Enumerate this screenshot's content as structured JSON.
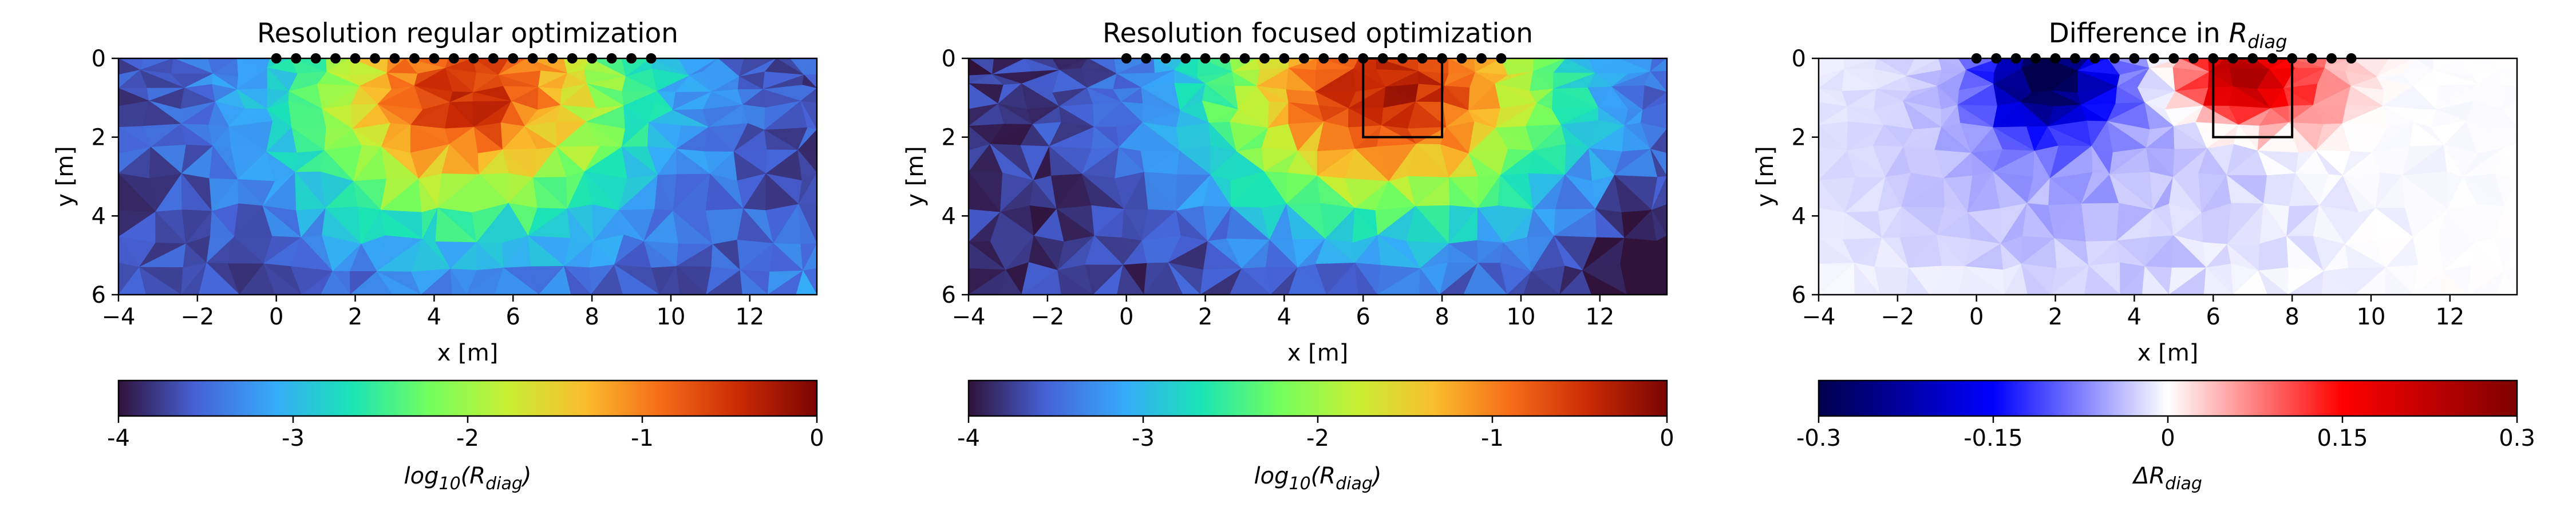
{
  "colors": {
    "turbo": [
      "#30123b",
      "#4662d7",
      "#36aaf9",
      "#1ae4b6",
      "#72fe5e",
      "#c7ef34",
      "#fabd2c",
      "#f66b19",
      "#ca2a04",
      "#7a0403"
    ],
    "seismic": [
      "#00004c",
      "#0000ff",
      "#ffffff",
      "#ff0000",
      "#7f0000"
    ],
    "axes": "#000000"
  },
  "chart_data": [
    {
      "type": "heatmap",
      "mesh": "triangular",
      "title": "Resolution regular optimization",
      "xlabel": "x [m]",
      "ylabel": "y [m]",
      "xlim": [
        -4,
        13.7
      ],
      "ylim": [
        6,
        0
      ],
      "xticks": [
        -4,
        -2,
        0,
        2,
        4,
        6,
        8,
        10,
        12
      ],
      "xtick_labels": [
        "−4",
        "−2",
        "0",
        "2",
        "4",
        "6",
        "8",
        "10",
        "12"
      ],
      "yticks": [
        0,
        2,
        4,
        6
      ],
      "ytick_labels": [
        "0",
        "2",
        "4",
        "6"
      ],
      "colormap": "turbo",
      "vmin": -4,
      "vmax": 0,
      "colorbar_ticks": [
        -4,
        -3,
        -2,
        -1,
        0
      ],
      "colorbar_tick_labels": [
        "-4",
        "-3",
        "-2",
        "-1",
        "0"
      ],
      "colorbar_label": "log10(Rdiag)",
      "colorbar_label_base": "log",
      "colorbar_label_sub": "10",
      "colorbar_label_arg": "(R",
      "colorbar_label_arg_sub": "diag",
      "colorbar_label_close": ")",
      "electrodes_x": [
        0,
        0.5,
        1,
        1.5,
        2,
        2.5,
        3,
        3.5,
        4,
        4.5,
        5,
        5.5,
        6,
        6.5,
        7,
        7.5,
        8,
        8.5,
        9,
        9.5
      ],
      "field": {
        "center_x": 4.85,
        "center_y": 0.9,
        "peak": -0.5,
        "radius_x": 5.4,
        "radius_y": 4.2,
        "floor": -3.7,
        "noise": 0.22,
        "corner_x": 13.7,
        "corner_y": 6,
        "corner_value": -3.2,
        "corner_radius": 3
      },
      "focus_box": null
    },
    {
      "type": "heatmap",
      "mesh": "triangular",
      "title": "Resolution focused optimization",
      "xlabel": "x [m]",
      "ylabel": "y [m]",
      "xlim": [
        -4,
        13.7
      ],
      "ylim": [
        6,
        0
      ],
      "xticks": [
        -4,
        -2,
        0,
        2,
        4,
        6,
        8,
        10,
        12
      ],
      "xtick_labels": [
        "−4",
        "−2",
        "0",
        "2",
        "4",
        "6",
        "8",
        "10",
        "12"
      ],
      "yticks": [
        0,
        2,
        4,
        6
      ],
      "ytick_labels": [
        "0",
        "2",
        "4",
        "6"
      ],
      "colormap": "turbo",
      "vmin": -4,
      "vmax": 0,
      "colorbar_ticks": [
        -4,
        -3,
        -2,
        -1,
        0
      ],
      "colorbar_tick_labels": [
        "-4",
        "-3",
        "-2",
        "-1",
        "0"
      ],
      "colorbar_label": "log10(Rdiag)",
      "colorbar_label_base": "log",
      "colorbar_label_sub": "10",
      "colorbar_label_arg": "(R",
      "colorbar_label_arg_sub": "diag",
      "colorbar_label_close": ")",
      "electrodes_x": [
        0,
        0.5,
        1,
        1.5,
        2,
        2.5,
        3,
        3.5,
        4,
        4.5,
        5,
        5.5,
        6,
        6.5,
        7,
        7.5,
        8,
        8.5,
        9,
        9.5
      ],
      "field": {
        "center_x": 6.6,
        "center_y": 0.9,
        "peak": -0.3,
        "radius_x": 5.6,
        "radius_y": 4.0,
        "floor": -3.8,
        "noise": 0.22,
        "corner_x": 13.7,
        "corner_y": 6,
        "corner_value": -4.3,
        "corner_radius": 3.2
      },
      "focus_box": {
        "x": [
          6,
          8
        ],
        "y": [
          0,
          2
        ]
      }
    },
    {
      "type": "heatmap",
      "mesh": "triangular",
      "title": "Difference in Rdiag",
      "title_prefix": "Difference in ",
      "title_math": "R",
      "title_math_sub": "diag",
      "xlabel": "x [m]",
      "ylabel": "y [m]",
      "xlim": [
        -4,
        13.7
      ],
      "ylim": [
        6,
        0
      ],
      "xticks": [
        -4,
        -2,
        0,
        2,
        4,
        6,
        8,
        10,
        12
      ],
      "xtick_labels": [
        "−4",
        "−2",
        "0",
        "2",
        "4",
        "6",
        "8",
        "10",
        "12"
      ],
      "yticks": [
        0,
        2,
        4,
        6
      ],
      "ytick_labels": [
        "0",
        "2",
        "4",
        "6"
      ],
      "colormap": "seismic",
      "vmin": -0.3,
      "vmax": 0.3,
      "colorbar_ticks": [
        -0.3,
        -0.15,
        0,
        0.15,
        0.3
      ],
      "colorbar_tick_labels": [
        "-0.3",
        "-0.15",
        "0",
        "0.15",
        "0.3"
      ],
      "colorbar_label": "ΔRdiag",
      "colorbar_label_base": "ΔR",
      "colorbar_label_sub": "diag",
      "colorbar_label_arg": "",
      "colorbar_label_arg_sub": "",
      "colorbar_label_close": "",
      "electrodes_x": [
        0,
        0.5,
        1,
        1.5,
        2,
        2.5,
        3,
        3.5,
        4,
        4.5,
        5,
        5.5,
        6,
        6.5,
        7,
        7.5,
        8,
        8.5,
        9,
        9.5
      ],
      "blobs": [
        {
          "center_x": 1.8,
          "center_y": 0.5,
          "amplitude": -0.27,
          "radius_x": 1.6,
          "radius_y": 1.4
        },
        {
          "center_x": 2.2,
          "center_y": 2.5,
          "amplitude": -0.05,
          "radius_x": 6,
          "radius_y": 3.5
        },
        {
          "center_x": 6.6,
          "center_y": 0.5,
          "amplitude": 0.26,
          "radius_x": 1.4,
          "radius_y": 1.0
        },
        {
          "center_x": 8.4,
          "center_y": 0.9,
          "amplitude": 0.08,
          "radius_x": 1.4,
          "radius_y": 1.3
        }
      ],
      "field_noise": 0.02,
      "focus_box": {
        "x": [
          6,
          8
        ],
        "y": [
          0,
          2
        ]
      }
    }
  ]
}
